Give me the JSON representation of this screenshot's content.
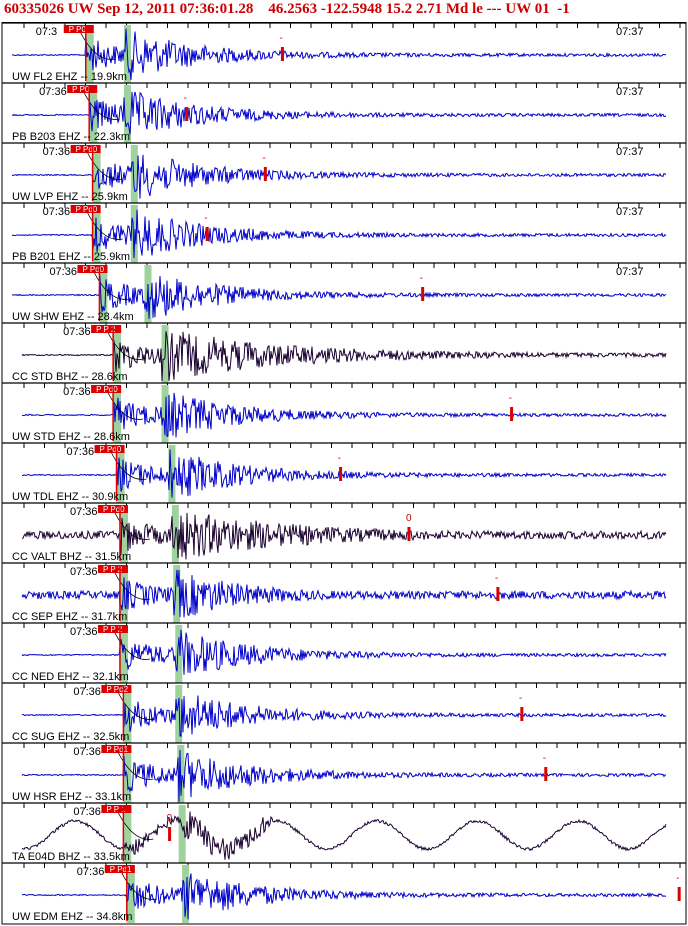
{
  "header": {
    "event_id": "60335026",
    "network": "UW",
    "origin_time": "Sep 12, 2011 07:36:01.28",
    "latitude": "46.2563",
    "longitude": "-122.5948",
    "depth": "15.2",
    "magnitude": "2.71",
    "mag_type": "Md",
    "flags": "le ---",
    "author": "UW 01",
    "suffix": "-1"
  },
  "colors": {
    "header_text": "#cc0000",
    "trace_blue": "#0000cc",
    "trace_dark": "#1a0030",
    "pick_flag": "#dd0000",
    "green_band": "#9ed39e",
    "grid": "#000000"
  },
  "time_labels": {
    "first": "07:36",
    "later": "07:37"
  },
  "traces": [
    {
      "station": "UW FL2 EHZ -- 19.9km",
      "network": "UW",
      "color": "blue",
      "pick": "P P0",
      "start_label": "07:3",
      "end_label": "07:37",
      "amp_mark": "-",
      "amp_pos": 0.41,
      "p_time": 0.14,
      "s_time": 0.19
    },
    {
      "station": "PB B203 EHZ -- 22.3km",
      "network": "PB",
      "color": "blue",
      "pick": "P P0",
      "start_label": "07:36",
      "end_label": "07:37",
      "amp_mark": "-",
      "amp_pos": 0.27,
      "p_time": 0.145,
      "s_time": 0.19
    },
    {
      "station": "UW LVP EHZ -- 25.9km",
      "network": "UW",
      "color": "blue",
      "pick": "P Pd0",
      "start_label": "07:36",
      "end_label": "07:37",
      "amp_mark": "-",
      "amp_pos": 0.385,
      "p_time": 0.15,
      "s_time": 0.2
    },
    {
      "station": "PB B201 EHZ -- 25.9km",
      "network": "PB",
      "color": "blue",
      "pick": "P Pd0",
      "start_label": "07:36",
      "end_label": "07:37",
      "amp_mark": "-",
      "amp_pos": 0.3,
      "p_time": 0.15,
      "s_time": 0.2
    },
    {
      "station": "UW SHW EHZ -- 28.4km",
      "network": "UW",
      "color": "blue",
      "pick": "P Pd0",
      "start_label": "07:36",
      "end_label": "07:37",
      "amp_mark": "-",
      "amp_pos": 0.615,
      "p_time": 0.16,
      "s_time": 0.22
    },
    {
      "station": "CC STD BHZ -- 28.6km",
      "network": "CC",
      "color": "dark",
      "pick": "P P 2",
      "start_label": "07:36",
      "end_label": "",
      "amp_mark": "",
      "amp_pos": 0.0,
      "p_time": 0.18,
      "s_time": 0.245
    },
    {
      "station": "UW STD EHZ -- 28.6km",
      "network": "UW",
      "color": "blue",
      "pick": "P Pd0",
      "start_label": "07:36",
      "end_label": "",
      "amp_mark": "-",
      "amp_pos": 0.745,
      "p_time": 0.18,
      "s_time": 0.245
    },
    {
      "station": "UW TDL EHZ -- 30.9km",
      "network": "UW",
      "color": "blue",
      "pick": "P Pd0",
      "start_label": "07:36",
      "end_label": "",
      "amp_mark": "-",
      "amp_pos": 0.495,
      "p_time": 0.185,
      "s_time": 0.255
    },
    {
      "station": "CC VALT BHZ -- 31.5km",
      "network": "CC",
      "color": "dark",
      "pick": "P Pd0",
      "start_label": "07:36",
      "end_label": "",
      "amp_mark": "0",
      "amp_pos": 0.595,
      "p_time": 0.19,
      "s_time": 0.26
    },
    {
      "station": "CC SEP EHZ -- 31.7km",
      "network": "CC",
      "color": "blue",
      "pick": "P P 2",
      "start_label": "07:36",
      "end_label": "",
      "amp_mark": "-",
      "amp_pos": 0.725,
      "p_time": 0.19,
      "s_time": 0.262
    },
    {
      "station": "CC NED EHZ -- 32.1km",
      "network": "CC",
      "color": "blue",
      "pick": "P P 2",
      "start_label": "07:36",
      "end_label": "",
      "amp_mark": "",
      "amp_pos": 0.0,
      "p_time": 0.19,
      "s_time": 0.265
    },
    {
      "station": "CC SUG EHZ -- 32.5km",
      "network": "CC",
      "color": "blue",
      "pick": "P Pd2",
      "start_label": "07:36",
      "end_label": "",
      "amp_mark": "-",
      "amp_pos": 0.76,
      "p_time": 0.195,
      "s_time": 0.265
    },
    {
      "station": "UW HSR EHZ -- 33.1km",
      "network": "UW",
      "color": "blue",
      "pick": "P Pd1",
      "start_label": "07:36",
      "end_label": "",
      "amp_mark": "-",
      "amp_pos": 0.795,
      "p_time": 0.195,
      "s_time": 0.268
    },
    {
      "station": "TA E04D BHZ -- 33.5km",
      "network": "TA",
      "color": "dark",
      "pick": "P P 1",
      "start_label": "07:36",
      "end_label": "",
      "amp_mark": "0",
      "amp_pos": 0.245,
      "p_time": 0.195,
      "s_time": 0.27
    },
    {
      "station": "UW EDM EHZ -- 34.8km",
      "network": "UW",
      "color": "blue",
      "pick": "P Pd1",
      "start_label": "07:36",
      "end_label": "",
      "amp_mark": "-",
      "amp_pos": 0.99,
      "p_time": 0.2,
      "s_time": 0.275
    }
  ]
}
